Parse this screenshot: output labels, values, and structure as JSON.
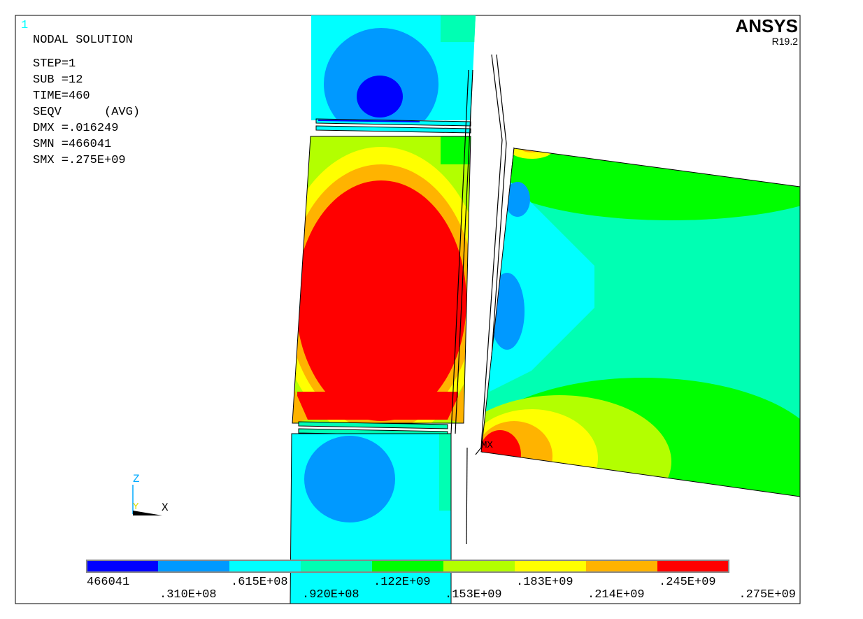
{
  "header": {
    "window_number": "1",
    "title": "NODAL SOLUTION",
    "lines": [
      "STEP=1",
      "SUB =12",
      "TIME=460",
      "SEQV      (AVG)",
      "DMX =.016249",
      "SMN =466041",
      "SMX =.275E+09"
    ],
    "brand": "ANSYS",
    "version": "R19.2"
  },
  "plot": {
    "max_marker": "MX"
  },
  "triad": {
    "z": "Z",
    "y": "Y",
    "x": "X"
  },
  "legend": {
    "colors": [
      "#0000ff",
      "#0099ff",
      "#00ffff",
      "#00ffb3",
      "#00ff00",
      "#b3ff00",
      "#ffff00",
      "#ffb300",
      "#ff0000"
    ],
    "labels": [
      "466041",
      ".310E+08",
      ".615E+08",
      ".920E+08",
      ".122E+09",
      ".153E+09",
      ".183E+09",
      ".214E+09",
      ".245E+09",
      ".275E+09"
    ]
  }
}
